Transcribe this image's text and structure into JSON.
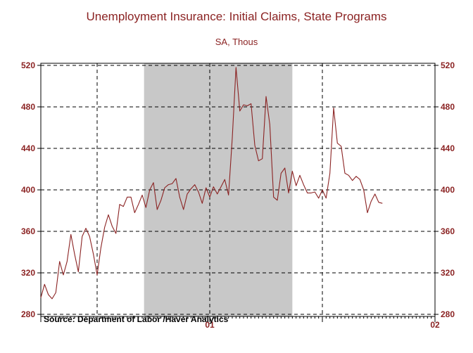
{
  "colors": {
    "title": "#8b2323",
    "line": "#8b2323",
    "recession": "#c8c8c8",
    "axis": "#000000"
  },
  "chart_data": {
    "type": "line",
    "title": "Unemployment Insurance: Initial Claims, State Programs",
    "subtitle": "SA, Thous",
    "source": "Source:  Department of Labor /Haver Analytics",
    "ylim": [
      278,
      522
    ],
    "y_ticks": [
      280,
      320,
      360,
      400,
      440,
      480,
      520
    ],
    "y_tick_labels": [
      "280",
      "320",
      "360",
      "400",
      "440",
      "480",
      "520"
    ],
    "x_tick_labels": [
      "01",
      "02"
    ],
    "xlim": [
      0,
      105
    ],
    "x_label_positions": [
      45,
      105
    ],
    "x_dashed_lines": [
      15,
      45,
      75
    ],
    "shaded_region": [
      27.5,
      67
    ],
    "series": [
      {
        "name": "Initial Claims, State Programs",
        "values": [
          296,
          309,
          299,
          295,
          301,
          331,
          318,
          331,
          357,
          338,
          321,
          355,
          363,
          355,
          338,
          318,
          344,
          364,
          376,
          365,
          358,
          386,
          384,
          393,
          393,
          378,
          386,
          395,
          383,
          400,
          407,
          381,
          390,
          402,
          405,
          406,
          411,
          393,
          381,
          396,
          401,
          405,
          398,
          387,
          402,
          393,
          403,
          396,
          403,
          410,
          395,
          450,
          518,
          476,
          482,
          481,
          483,
          443,
          428,
          430,
          490,
          463,
          393,
          390,
          416,
          421,
          397,
          418,
          404,
          414,
          405,
          397,
          397,
          398,
          392,
          400,
          392,
          416,
          479,
          445,
          442,
          416,
          414,
          409,
          413,
          410,
          400,
          378,
          389,
          396,
          388,
          387
        ]
      }
    ]
  }
}
